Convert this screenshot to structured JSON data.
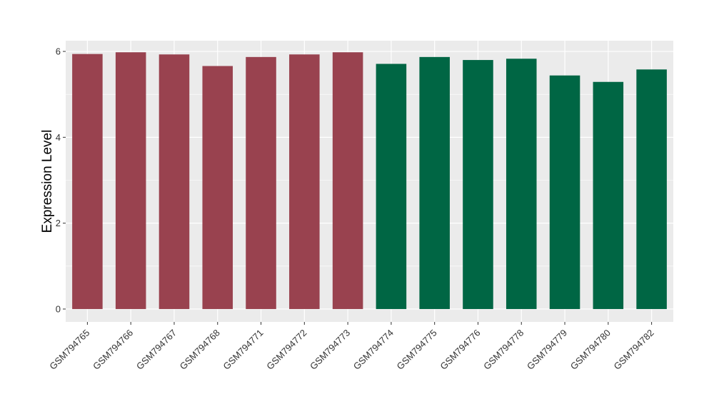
{
  "chart_data": {
    "type": "bar",
    "title": "",
    "xlabel": "",
    "ylabel": "Expression Level",
    "ylim": [
      -0.3,
      6.25
    ],
    "yticks": [
      0,
      2,
      4,
      6
    ],
    "grid": true,
    "categories": [
      "GSM794765",
      "GSM794766",
      "GSM794767",
      "GSM794768",
      "GSM794771",
      "GSM794772",
      "GSM794773",
      "GSM794774",
      "GSM794775",
      "GSM794776",
      "GSM794778",
      "GSM794779",
      "GSM794780",
      "GSM794782"
    ],
    "values": [
      5.94,
      5.98,
      5.93,
      5.66,
      5.87,
      5.93,
      5.98,
      5.71,
      5.87,
      5.8,
      5.83,
      5.44,
      5.29,
      5.58
    ],
    "bar_colors": [
      "#99424f",
      "#99424f",
      "#99424f",
      "#99424f",
      "#99424f",
      "#99424f",
      "#99424f",
      "#006644",
      "#006644",
      "#006644",
      "#006644",
      "#006644",
      "#006644",
      "#006644"
    ],
    "panel_background": "#ebebeb",
    "grid_color": "#ffffff"
  }
}
